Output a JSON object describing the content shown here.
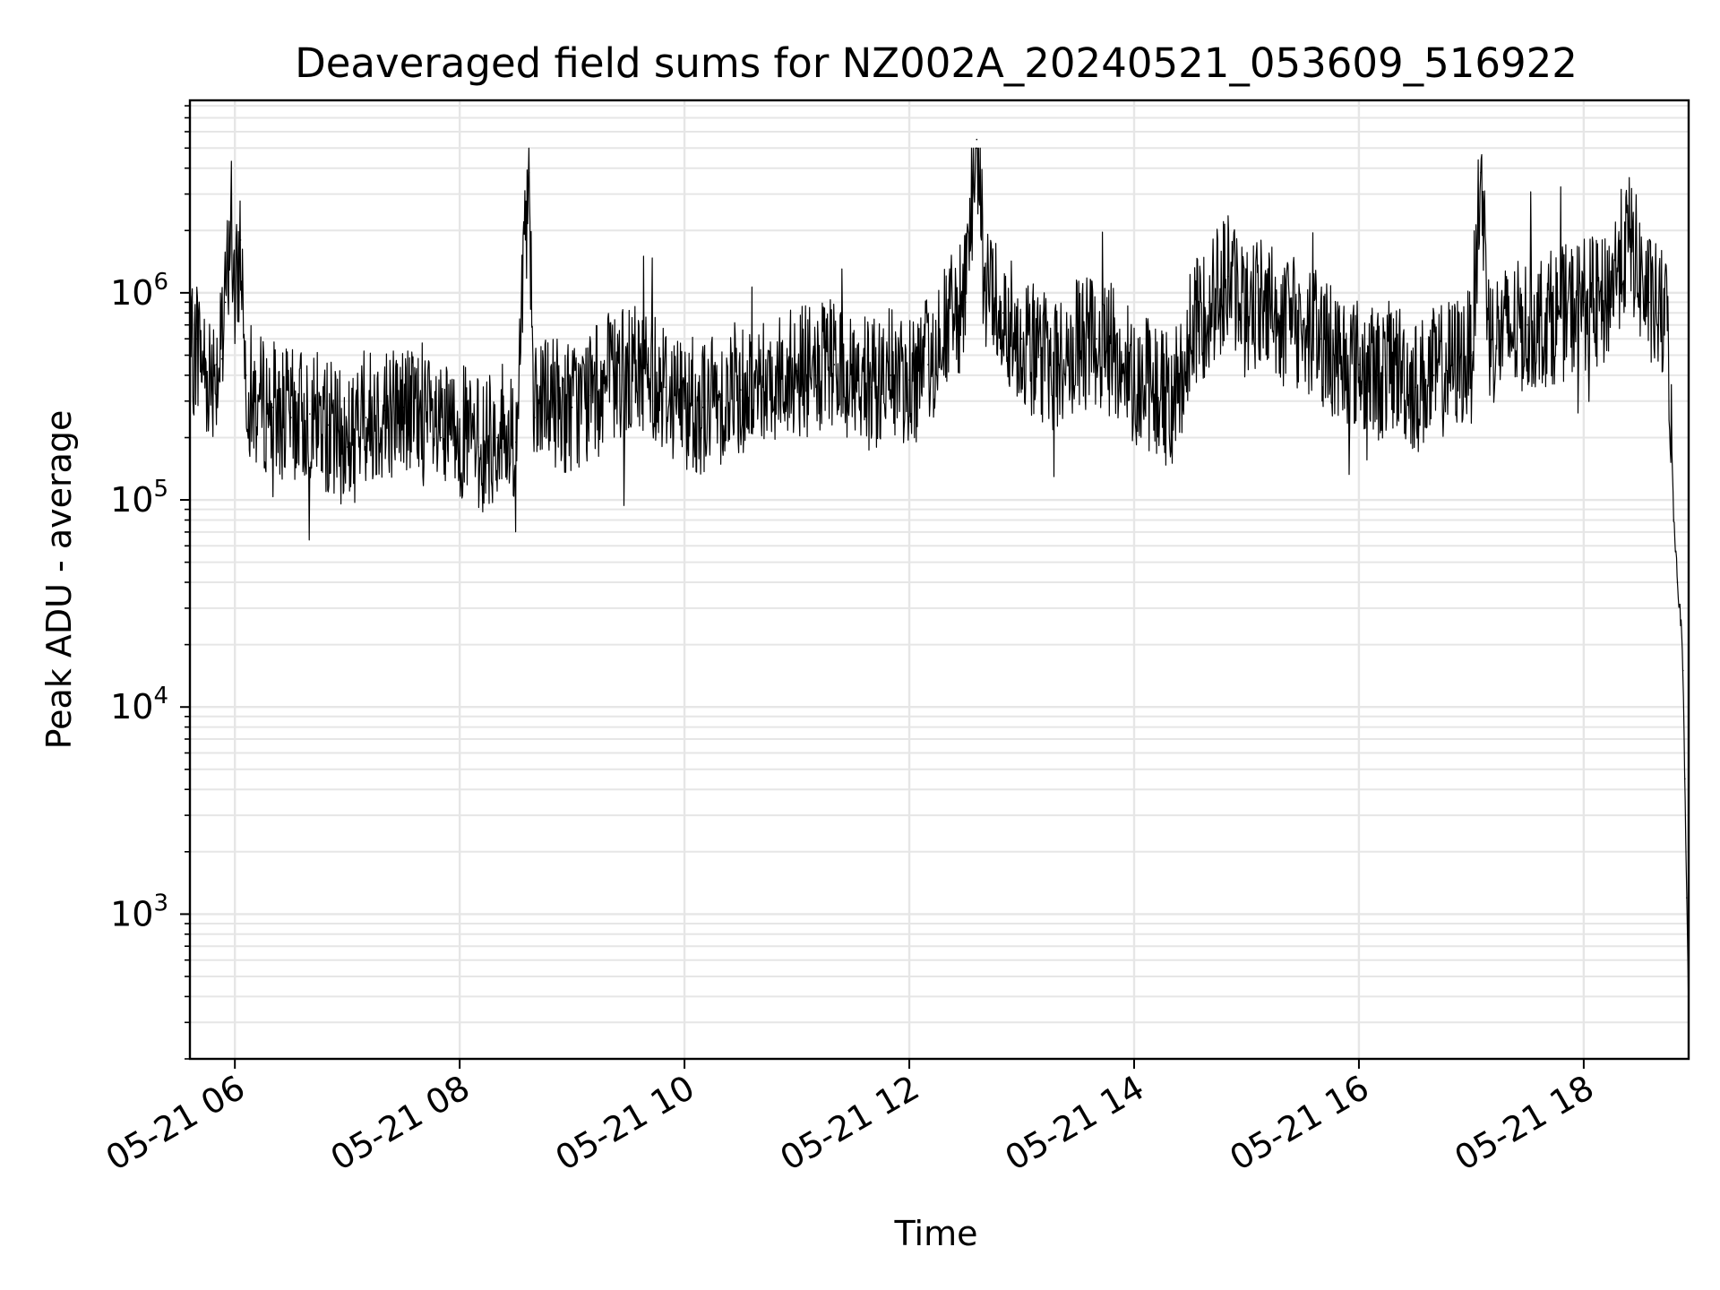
{
  "chart_data": {
    "type": "line",
    "title": "Deaveraged field sums for NZ002A_20240521_053609_516922",
    "xlabel": "Time",
    "ylabel": "Peak ADU - average",
    "yscale": "log",
    "xlim": [
      "05-21 05:36",
      "05-21 18:56"
    ],
    "ylim": [
      200,
      8500000
    ],
    "grid": true,
    "line_color": "#000000",
    "x_ticks": [
      "05-21 06",
      "05-21 08",
      "05-21 10",
      "05-21 12",
      "05-21 14",
      "05-21 16",
      "05-21 18"
    ],
    "y_ticks": [
      {
        "base": "10",
        "exp": "3",
        "value": 1000
      },
      {
        "base": "10",
        "exp": "4",
        "value": 10000
      },
      {
        "base": "10",
        "exp": "5",
        "value": 100000
      },
      {
        "base": "10",
        "exp": "6",
        "value": 1000000
      }
    ],
    "series": [
      {
        "x": [
          "05-21 05:36",
          "05-21 05:40",
          "05-21 05:45",
          "05-21 05:50",
          "05-21 05:53",
          "05-21 05:55",
          "05-21 05:58",
          "05-21 06:00",
          "05-21 06:03",
          "05-21 06:06",
          "05-21 06:10",
          "05-21 06:20",
          "05-21 06:30",
          "05-21 06:40",
          "05-21 06:50",
          "05-21 07:00",
          "05-21 07:10",
          "05-21 07:20",
          "05-21 07:30",
          "05-21 07:40",
          "05-21 07:50",
          "05-21 08:00",
          "05-21 08:10",
          "05-21 08:20",
          "05-21 08:30",
          "05-21 08:37",
          "05-21 08:40",
          "05-21 08:50",
          "05-21 09:00",
          "05-21 09:10",
          "05-21 09:20",
          "05-21 09:30",
          "05-21 09:40",
          "05-21 09:50",
          "05-21 10:00",
          "05-21 10:10",
          "05-21 10:20",
          "05-21 10:30",
          "05-21 10:40",
          "05-21 10:50",
          "05-21 11:00",
          "05-21 11:10",
          "05-21 11:20",
          "05-21 11:30",
          "05-21 11:40",
          "05-21 11:50",
          "05-21 12:00",
          "05-21 12:10",
          "05-21 12:20",
          "05-21 12:30",
          "05-21 12:36",
          "05-21 12:40",
          "05-21 12:50",
          "05-21 13:00",
          "05-21 13:10",
          "05-21 13:20",
          "05-21 13:30",
          "05-21 13:40",
          "05-21 13:50",
          "05-21 14:00",
          "05-21 14:10",
          "05-21 14:20",
          "05-21 14:30",
          "05-21 14:40",
          "05-21 14:50",
          "05-21 15:00",
          "05-21 15:10",
          "05-21 15:20",
          "05-21 15:30",
          "05-21 15:40",
          "05-21 15:50",
          "05-21 16:00",
          "05-21 16:10",
          "05-21 16:20",
          "05-21 16:30",
          "05-21 16:40",
          "05-21 16:50",
          "05-21 17:00",
          "05-21 17:05",
          "05-21 17:10",
          "05-21 17:20",
          "05-21 17:30",
          "05-21 17:40",
          "05-21 17:50",
          "05-21 18:00",
          "05-21 18:10",
          "05-21 18:20",
          "05-21 18:25",
          "05-21 18:30",
          "05-21 18:35",
          "05-21 18:40",
          "05-21 18:45",
          "05-21 18:48",
          "05-21 18:50",
          "05-21 18:52",
          "05-21 18:53",
          "05-21 18:54",
          "05-21 18:55",
          "05-21 18:56"
        ],
        "y": [
          450000,
          600000,
          400000,
          450000,
          480000,
          900000,
          2500000,
          800000,
          1800000,
          400000,
          300000,
          280000,
          250000,
          260000,
          230000,
          180000,
          250000,
          270000,
          280000,
          250000,
          200000,
          220000,
          180000,
          200000,
          190000,
          3800000,
          250000,
          300000,
          280000,
          320000,
          380000,
          400000,
          450000,
          350000,
          300000,
          280000,
          320000,
          340000,
          380000,
          400000,
          420000,
          400000,
          450000,
          380000,
          350000,
          400000,
          380000,
          450000,
          700000,
          900000,
          5500000,
          1200000,
          800000,
          600000,
          500000,
          450000,
          550000,
          600000,
          500000,
          400000,
          350000,
          300000,
          600000,
          900000,
          1200000,
          800000,
          1000000,
          700000,
          700000,
          600000,
          500000,
          450000,
          400000,
          450000,
          350000,
          400000,
          450000,
          500000,
          3800000,
          600000,
          650000,
          700000,
          750000,
          800000,
          900000,
          850000,
          1500000,
          1800000,
          1200000,
          900000,
          800000,
          700000,
          80000,
          40000,
          25000,
          15000,
          4500,
          1200,
          330
        ]
      }
    ]
  }
}
